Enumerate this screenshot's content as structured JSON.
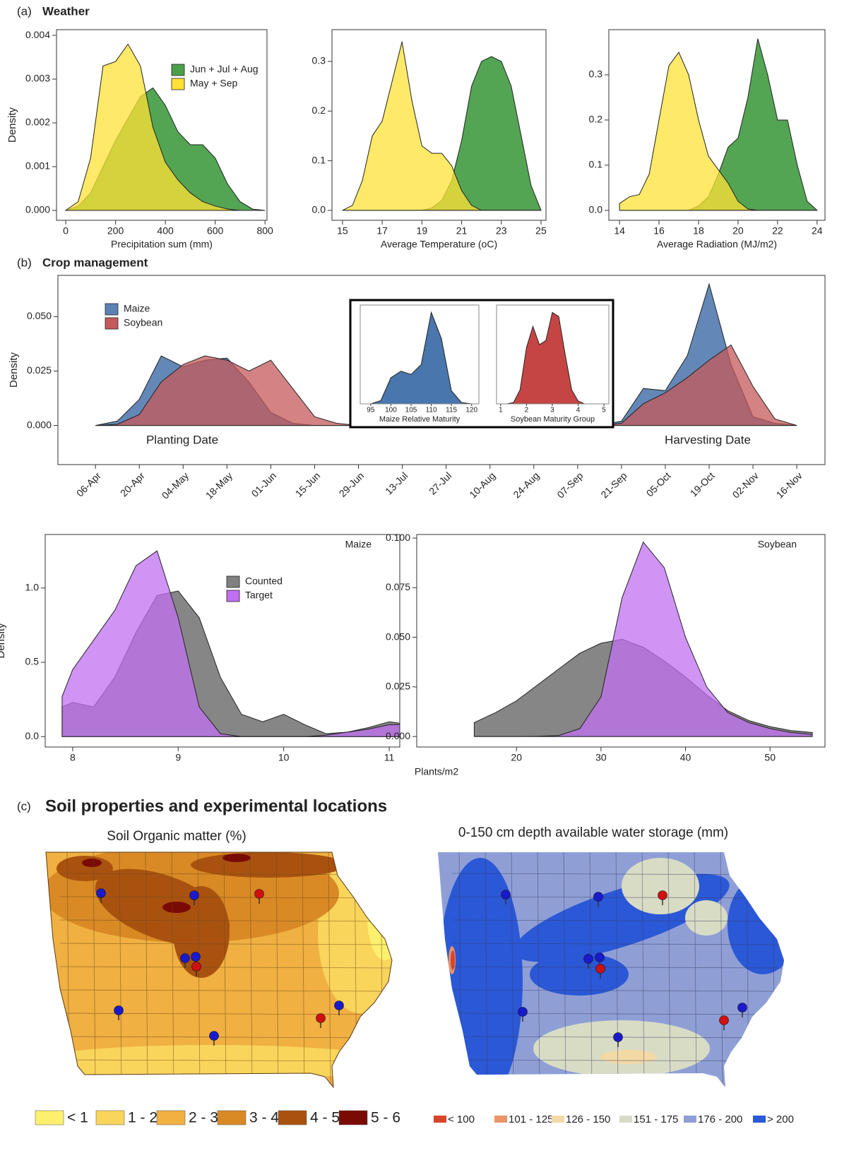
{
  "sections": [
    {
      "label": "(a)",
      "title": "Weather"
    },
    {
      "label": "(b)",
      "title": "Crop management"
    },
    {
      "label": "(c)",
      "title": "Soil properties and experimental locations"
    }
  ],
  "chart_data": [
    {
      "type": "area",
      "x_label": "Precipitation sum (mm)",
      "y_label": "Density",
      "x": [
        0,
        50,
        100,
        150,
        200,
        250,
        300,
        350,
        400,
        450,
        500,
        550,
        600,
        650,
        700,
        750,
        800
      ],
      "series": [
        {
          "name": "Jun + Jul + Aug",
          "color": "#4aa04a",
          "values": [
            0,
            0.0001,
            0.0004,
            0.001,
            0.0016,
            0.0021,
            0.0026,
            0.0028,
            0.0024,
            0.0018,
            0.0015,
            0.0015,
            0.0012,
            0.0006,
            0.0002,
            3e-05,
            0
          ]
        },
        {
          "name": "May + Sep",
          "color": "#ffe135",
          "values": [
            0,
            0.0002,
            0.0012,
            0.0033,
            0.0034,
            0.0038,
            0.0033,
            0.0019,
            0.0011,
            0.0007,
            0.0004,
            0.0002,
            0.0001,
            3e-05,
            0,
            0,
            0
          ]
        }
      ],
      "xlim": [
        -37,
        808
      ],
      "xticks": [
        0,
        200,
        400,
        600,
        800
      ],
      "ylim": [
        -0.000226,
        0.00413
      ],
      "yticks": [
        {
          "value": 0,
          "label": "0.000"
        },
        0.001,
        0.002,
        0.003,
        0.004
      ],
      "legend": "upper right",
      "grid": false
    },
    {
      "type": "area",
      "x_label": "Average Temperature (oC)",
      "x": [
        15,
        15.5,
        16,
        16.5,
        17,
        17.5,
        18,
        18.5,
        19,
        19.5,
        20,
        20.5,
        21,
        21.5,
        22,
        22.5,
        23,
        23.5,
        24,
        24.5,
        25
      ],
      "series": [
        {
          "name": "Jun + Jul + Aug",
          "color": "#4aa04a",
          "values": [
            0,
            0,
            0,
            0,
            0,
            0,
            0,
            0,
            0,
            0.005,
            0.02,
            0.06,
            0.14,
            0.25,
            0.3,
            0.31,
            0.3,
            0.25,
            0.15,
            0.05,
            0
          ]
        },
        {
          "name": "May + Sep",
          "color": "#ffe135",
          "values": [
            0,
            0.01,
            0.06,
            0.15,
            0.18,
            0.26,
            0.34,
            0.22,
            0.13,
            0.115,
            0.115,
            0.09,
            0.04,
            0.01,
            0,
            0,
            0,
            0,
            0,
            0,
            0
          ]
        }
      ],
      "xlim": [
        14.47,
        25.25
      ],
      "xticks": [
        15,
        17,
        19,
        21,
        23,
        25
      ],
      "ylim": [
        -0.02,
        0.364
      ],
      "yticks": [
        {
          "value": 0,
          "label": "0.0"
        },
        0.1,
        0.2,
        0.3
      ],
      "grid": false
    },
    {
      "type": "area",
      "x_label": "Average Radiation (MJ/m2)",
      "x": [
        14,
        14.5,
        15,
        15.5,
        16,
        16.5,
        17,
        17.5,
        18,
        18.5,
        19,
        19.5,
        20,
        20.5,
        21,
        21.5,
        22,
        22.5,
        23,
        23.5,
        24
      ],
      "series": [
        {
          "name": "Jun + Jul + Aug",
          "color": "#4aa04a",
          "values": [
            0,
            0,
            0,
            0,
            0,
            0,
            0,
            0,
            0.01,
            0.03,
            0.08,
            0.14,
            0.16,
            0.25,
            0.38,
            0.3,
            0.2,
            0.2,
            0.1,
            0.02,
            0
          ]
        },
        {
          "name": "May + Sep",
          "color": "#ffe135",
          "values": [
            0.015,
            0.03,
            0.035,
            0.08,
            0.2,
            0.32,
            0.35,
            0.3,
            0.2,
            0.12,
            0.09,
            0.06,
            0.02,
            0.003,
            0,
            0,
            0,
            0,
            0,
            0,
            0
          ]
        }
      ],
      "xlim": [
        13.46,
        24.4
      ],
      "xticks": [
        14,
        16,
        18,
        20,
        22,
        24
      ],
      "ylim": [
        -0.022,
        0.4
      ],
      "yticks": [
        {
          "value": 0,
          "label": "0.0"
        },
        0.1,
        0.2,
        0.3
      ],
      "grid": false
    },
    {
      "type": "area",
      "y_label": "Density",
      "x": [
        "06-Apr",
        "13-Apr",
        "20-Apr",
        "27-Apr",
        "04-May",
        "11-May",
        "18-May",
        "25-May",
        "01-Jun",
        "08-Jun",
        "15-Jun",
        "22-Jun",
        "29-Jun",
        "06-Jul",
        "13-Jul",
        "20-Jul",
        "27-Jul",
        "03-Aug",
        "10-Aug",
        "17-Aug",
        "24-Aug",
        "31-Aug",
        "07-Sep",
        "14-Sep",
        "21-Sep",
        "28-Sep",
        "05-Oct",
        "12-Oct",
        "19-Oct",
        "26-Oct",
        "02-Nov",
        "09-Nov",
        "16-Nov"
      ],
      "series": [
        {
          "name": "Maize",
          "color": "#5b82b3",
          "values": [
            0,
            0.002,
            0.012,
            0.032,
            0.027,
            0.03,
            0.031,
            0.02,
            0.006,
            0.001,
            0,
            0,
            0,
            0,
            0,
            0,
            0,
            0,
            0,
            0,
            0,
            0,
            0,
            0,
            0.002,
            0.017,
            0.016,
            0.032,
            0.065,
            0.028,
            0.004,
            0.001,
            0
          ]
        },
        {
          "name": "Soybean",
          "color": "#c45a5a",
          "values": [
            0,
            0.0005,
            0.005,
            0.02,
            0.028,
            0.032,
            0.03,
            0.025,
            0.03,
            0.017,
            0.004,
            0.001,
            0,
            0,
            0,
            0,
            0,
            0,
            0,
            0,
            0,
            0,
            0,
            0,
            0.001,
            0.01,
            0.015,
            0.022,
            0.03,
            0.037,
            0.018,
            0.003,
            0
          ]
        }
      ],
      "xlim": [
        "25-Mar",
        "25-Nov"
      ],
      "xticks": [
        "06-Apr",
        "20-Apr",
        "04-May",
        "18-May",
        "01-Jun",
        "15-Jun",
        "29-Jun",
        "13-Jul",
        "27-Jul",
        "10-Aug",
        "24-Aug",
        "07-Sep",
        "21-Sep",
        "05-Oct",
        "19-Oct",
        "02-Nov",
        "16-Nov"
      ],
      "ylim": [
        -0.018,
        0.069
      ],
      "yticks": [
        {
          "value": 0,
          "label": "0.000"
        },
        {
          "value": 0.025,
          "label": "0.025"
        },
        {
          "value": 0.05,
          "label": "0.050"
        }
      ],
      "annotations": [
        "Planting Date",
        "Harvesting Date"
      ],
      "legend": "upper left",
      "grid": false
    },
    {
      "type": "area",
      "x_label": "Maize Relative Maturity",
      "x": [
        95,
        97.5,
        100,
        102.5,
        105,
        107.5,
        110,
        112.5,
        115,
        117.5,
        120
      ],
      "series": [
        {
          "name": "Maize",
          "color": "#3f6fa8",
          "values": [
            0,
            0.005,
            0.04,
            0.05,
            0.045,
            0.06,
            0.14,
            0.1,
            0.02,
            0.002,
            0
          ]
        }
      ],
      "xlim": [
        92.4,
        121.8
      ],
      "xticks": [
        95,
        100,
        105,
        110,
        115,
        120
      ],
      "legend": false
    },
    {
      "type": "area",
      "x_label": "Soybean Maturity Group",
      "x": [
        1,
        1.25,
        1.5,
        1.75,
        2,
        2.25,
        2.5,
        2.75,
        3,
        3.25,
        3.5,
        3.75,
        4,
        4.25,
        4.5,
        4.75,
        5
      ],
      "series": [
        {
          "name": "Soybean",
          "color": "#c23b3b",
          "values": [
            0,
            0,
            0.01,
            0.1,
            0.4,
            0.55,
            0.42,
            0.45,
            0.65,
            0.62,
            0.35,
            0.1,
            0.02,
            0,
            0,
            0,
            0
          ]
        }
      ],
      "xlim": [
        0.84,
        5.19
      ],
      "xticks": [
        1,
        2,
        3,
        4,
        5
      ],
      "legend": false
    },
    {
      "type": "area",
      "title": "Maize",
      "y_label": "Density",
      "x_label": "Plants/m2",
      "x": [
        7.9,
        8.0,
        8.2,
        8.4,
        8.6,
        8.8,
        9.0,
        9.2,
        9.4,
        9.6,
        9.8,
        10.0,
        10.2,
        10.4,
        10.6,
        10.8,
        11.0,
        11.1
      ],
      "series": [
        {
          "name": "Counted",
          "color": "#808080",
          "values": [
            0.2,
            0.23,
            0.2,
            0.4,
            0.7,
            0.95,
            0.98,
            0.8,
            0.4,
            0.15,
            0.1,
            0.15,
            0.08,
            0.02,
            0.03,
            0.06,
            0.1,
            0.09
          ]
        },
        {
          "name": "Target",
          "color": "#c070f0",
          "values": [
            0.27,
            0.45,
            0.65,
            0.85,
            1.15,
            1.25,
            0.8,
            0.2,
            0.02,
            0,
            0,
            0,
            0,
            0.01,
            0.03,
            0.05,
            0.08,
            0.08
          ]
        }
      ],
      "xlim": [
        7.74,
        11.1
      ],
      "xticks": [
        8,
        9,
        10,
        11
      ],
      "ylim": [
        -0.07,
        1.36
      ],
      "yticks": [
        {
          "value": 0,
          "label": "0.0"
        },
        0.5,
        {
          "value": 1,
          "label": "1.0"
        }
      ],
      "legend": "upper center",
      "grid": false
    },
    {
      "type": "area",
      "title": "Soybean",
      "x": [
        15,
        17.5,
        20,
        22.5,
        25,
        27.5,
        30,
        32.5,
        35,
        37.5,
        40,
        42.5,
        45,
        47.5,
        50,
        52.5,
        55
      ],
      "series": [
        {
          "name": "Counted",
          "color": "#808080",
          "values": [
            0.007,
            0.012,
            0.018,
            0.026,
            0.034,
            0.042,
            0.047,
            0.049,
            0.045,
            0.038,
            0.03,
            0.021,
            0.013,
            0.008,
            0.005,
            0.003,
            0.002
          ]
        },
        {
          "name": "Target",
          "color": "#c070f0",
          "values": [
            0,
            0,
            0,
            0.0001,
            0.0005,
            0.004,
            0.02,
            0.07,
            0.098,
            0.085,
            0.05,
            0.025,
            0.012,
            0.007,
            0.004,
            0.002,
            0.001
          ]
        }
      ],
      "xlim": [
        8.2,
        56.5
      ],
      "xticks": [
        20,
        30,
        40,
        50
      ],
      "ylim": [
        -0.0053,
        0.1018
      ],
      "yticks": [
        {
          "value": 0,
          "label": "0.000"
        },
        {
          "value": 0.025,
          "label": "0.025"
        },
        {
          "value": 0.05,
          "label": "0.050"
        },
        {
          "value": 0.075,
          "label": "0.075"
        },
        {
          "value": 0.1,
          "label": "0.100"
        }
      ],
      "legend": false,
      "grid": false
    }
  ],
  "maps": [
    {
      "title": "Soil Organic matter (%)",
      "legend": [
        {
          "label": "< 1",
          "color": "#fdf06e"
        },
        {
          "label": "1 - 2",
          "color": "#fad55c"
        },
        {
          "label": "2 - 3",
          "color": "#f0b042"
        },
        {
          "label": "3 - 4",
          "color": "#d98a25"
        },
        {
          "label": "4 - 5",
          "color": "#a9520f"
        },
        {
          "label": "5 - 6",
          "color": "#7a0a04"
        }
      ]
    },
    {
      "title": "0-150 cm depth available water storage (mm)",
      "legend": [
        {
          "label": "< 100",
          "color": "#d9442c"
        },
        {
          "label": "101 - 125",
          "color": "#e8956a"
        },
        {
          "label": "126 - 150",
          "color": "#f3d9a6"
        },
        {
          "label": "151 - 175",
          "color": "#d8dcc5"
        },
        {
          "label": "176 - 200",
          "color": "#8f9fd6"
        },
        {
          "label": "> 200",
          "color": "#2a58d6"
        }
      ]
    }
  ]
}
